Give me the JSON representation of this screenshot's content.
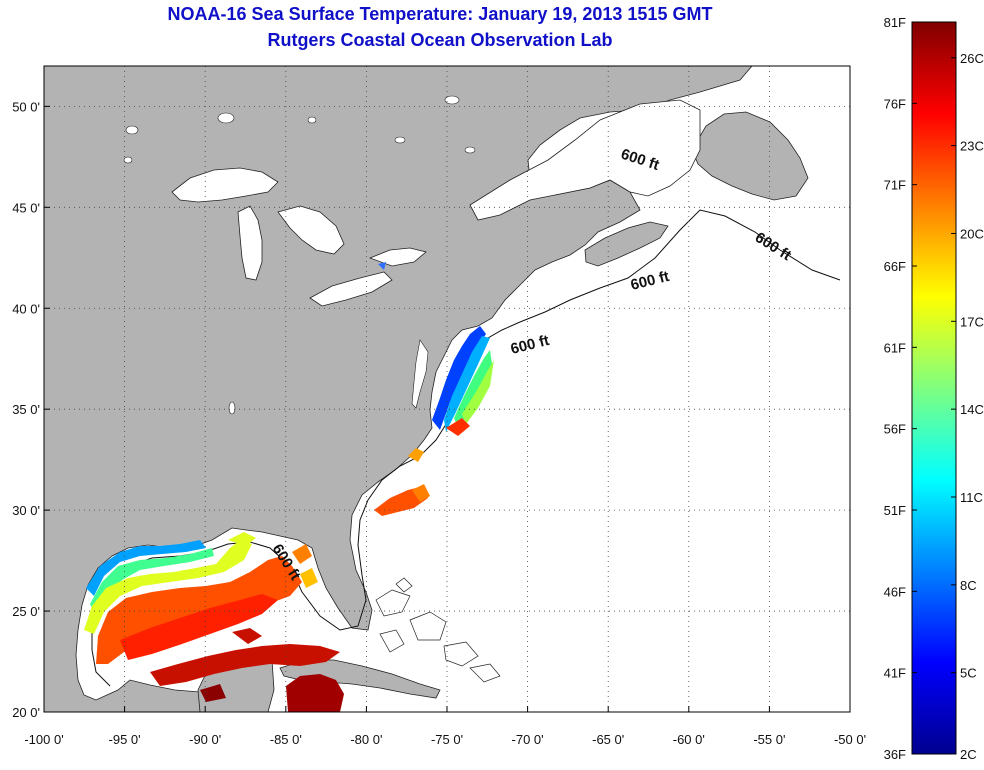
{
  "title_line1": "NOAA-16 Sea Surface Temperature:  January 19, 2013 1515 GMT",
  "title_line2": "Rutgers Coastal Ocean Observation Lab",
  "map": {
    "lon_range": [
      -100,
      -50
    ],
    "lat_range": [
      20,
      52
    ],
    "x_ticks": [
      "-100 0'",
      "-95 0'",
      "-90 0'",
      "-85 0'",
      "-80 0'",
      "-75 0'",
      "-70 0'",
      "-65 0'",
      "-60 0'",
      "-55 0'",
      "-50 0'"
    ],
    "y_ticks": [
      "20 0'",
      "25 0'",
      "30 0'",
      "35 0'",
      "40 0'",
      "45 0'",
      "50 0'"
    ],
    "grid": "dotted",
    "land_color": "#b3b3b3",
    "depth_label": "600 ft"
  },
  "colorbar": {
    "range_f": [
      36,
      81
    ],
    "f_labels": [
      "81F",
      "76F",
      "71F",
      "66F",
      "61F",
      "56F",
      "51F",
      "46F",
      "41F",
      "36F"
    ],
    "c_labels": [
      "26C",
      "23C",
      "20C",
      "17C",
      "14C",
      "11C",
      "8C",
      "5C",
      "2C"
    ]
  }
}
